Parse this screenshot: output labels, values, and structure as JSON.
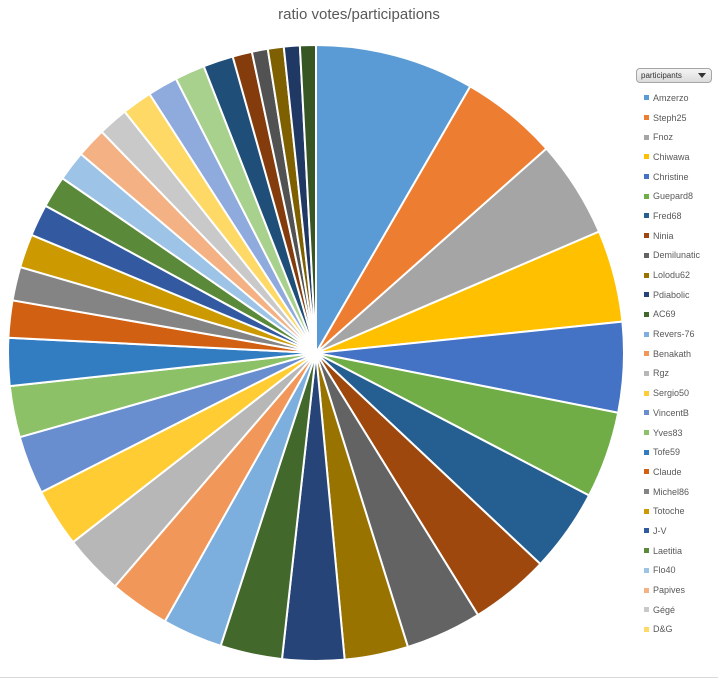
{
  "chart_data": {
    "type": "pie",
    "title": "ratio votes/participations",
    "legend_header": "participants",
    "legend_position": "right",
    "slices": [
      {
        "label": "Amzerzo",
        "value": 9.0,
        "color": "#5B9BD5"
      },
      {
        "label": "Steph25",
        "value": 5.5,
        "color": "#ED7D31"
      },
      {
        "label": "Fnoz",
        "value": 5.5,
        "color": "#A5A5A5"
      },
      {
        "label": "Chiwawa",
        "value": 5.2,
        "color": "#FFC000"
      },
      {
        "label": "Christine",
        "value": 5.1,
        "color": "#4472C4"
      },
      {
        "label": "Guepard8",
        "value": 4.9,
        "color": "#70AD47"
      },
      {
        "label": "Fred68",
        "value": 4.7,
        "color": "#255E91"
      },
      {
        "label": "Ninia",
        "value": 4.5,
        "color": "#9E480E"
      },
      {
        "label": "Demilunatic",
        "value": 4.3,
        "color": "#636363"
      },
      {
        "label": "Lolodu62",
        "value": 3.6,
        "color": "#997300"
      },
      {
        "label": "Pdiabolic",
        "value": 3.5,
        "color": "#264478"
      },
      {
        "label": "AC69",
        "value": 3.5,
        "color": "#43682B"
      },
      {
        "label": "Revers-76",
        "value": 3.4,
        "color": "#7CAFDD"
      },
      {
        "label": "Benakath",
        "value": 3.4,
        "color": "#F1975A"
      },
      {
        "label": "Rgz",
        "value": 3.4,
        "color": "#B7B7B7"
      },
      {
        "label": "Sergio50",
        "value": 3.3,
        "color": "#FFCD33"
      },
      {
        "label": "VincentB",
        "value": 3.3,
        "color": "#698ED0"
      },
      {
        "label": "Yves83",
        "value": 2.9,
        "color": "#8CC168"
      },
      {
        "label": "Tofe59",
        "value": 2.7,
        "color": "#327DC2"
      },
      {
        "label": "Claude",
        "value": 2.1,
        "color": "#D26012"
      },
      {
        "label": "Michel86",
        "value": 1.9,
        "color": "#848484"
      },
      {
        "label": "Totoche",
        "value": 1.9,
        "color": "#CC9A00"
      },
      {
        "label": "J-V",
        "value": 1.8,
        "color": "#335AA1"
      },
      {
        "label": "Laetitia",
        "value": 1.8,
        "color": "#5A8A39"
      },
      {
        "label": "Flo40",
        "value": 1.7,
        "color": "#9DC3E6"
      },
      {
        "label": "Papives",
        "value": 1.7,
        "color": "#F4B183"
      },
      {
        "label": "Gégé",
        "value": 1.7,
        "color": "#C9C9C9"
      },
      {
        "label": "D&G",
        "value": 1.7,
        "color": "#FFD966"
      },
      {
        "label": "",
        "value": 1.7,
        "color": "#8FAADC"
      },
      {
        "label": "",
        "value": 1.7,
        "color": "#A9D18E"
      },
      {
        "label": "",
        "value": 1.7,
        "color": "#1F4E79"
      },
      {
        "label": "",
        "value": 1.1,
        "color": "#843C0C"
      },
      {
        "label": "",
        "value": 0.9,
        "color": "#525252"
      },
      {
        "label": "",
        "value": 0.9,
        "color": "#7F6000"
      },
      {
        "label": "",
        "value": 0.9,
        "color": "#203864"
      },
      {
        "label": "",
        "value": 0.9,
        "color": "#375623"
      }
    ]
  }
}
